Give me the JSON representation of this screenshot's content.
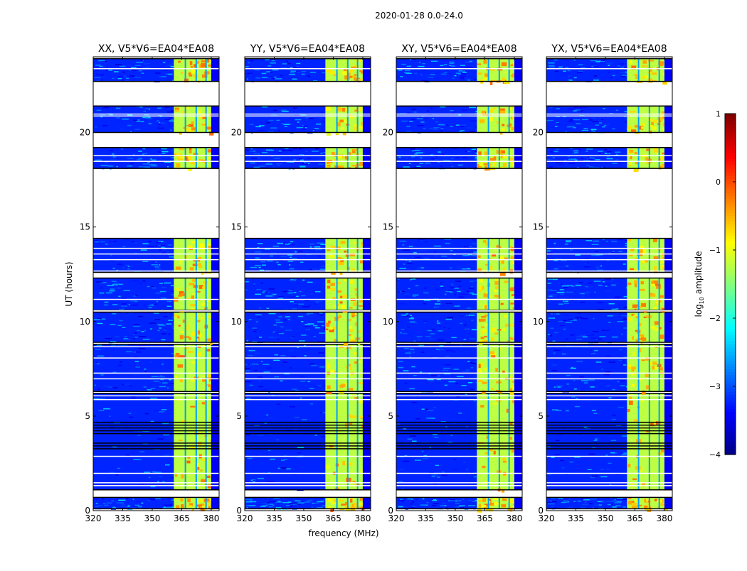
{
  "chart_data": {
    "type": "heatmap",
    "title": "2020-01-28 0.0-24.0",
    "xlabel": "frequency (MHz)",
    "ylabel": "UT (hours)",
    "xlim": [
      320,
      384
    ],
    "ylim": [
      0,
      24
    ],
    "xticks": [
      "320",
      "335",
      "350",
      "365",
      "380"
    ],
    "xtick_values": [
      320,
      335,
      350,
      365,
      380
    ],
    "yticks": [
      "0",
      "5",
      "10",
      "15",
      "20"
    ],
    "ytick_values": [
      0,
      5,
      10,
      15,
      20
    ],
    "panels": [
      {
        "title": "XX, V5*V6=EA04*EA08"
      },
      {
        "title": "YY, V5*V6=EA04*EA08"
      },
      {
        "title": "XY, V5*V6=EA04*EA08"
      },
      {
        "title": "YX, V5*V6=EA04*EA08"
      }
    ],
    "data_time_segments_hours": [
      [
        0.1,
        0.7
      ],
      [
        1.1,
        6.2
      ],
      [
        6.3,
        8.8
      ],
      [
        8.9,
        10.5
      ],
      [
        10.6,
        12.3
      ],
      [
        12.6,
        14.4
      ],
      [
        18.1,
        19.2
      ],
      [
        20.0,
        21.4
      ],
      [
        22.7,
        23.9
      ]
    ],
    "flagged_lines_hours": [
      0.95,
      1.35,
      1.5,
      2.0,
      2.9,
      3.3,
      3.45,
      3.6,
      4.1,
      4.25,
      4.4,
      4.55,
      4.7,
      5.9,
      6.1,
      7.0,
      7.3,
      8.1,
      8.7,
      10.6,
      11.2,
      12.7,
      13.3,
      13.6,
      13.9,
      18.5,
      18.8,
      20.9,
      21.0,
      23.4
    ],
    "background_log10_amplitude": -3.2,
    "bright_band_mhz": [
      361,
      380
    ],
    "bright_band_log10_amplitude": -1.2,
    "bright_band_stripes_mhz": [
      366.5,
      372,
      377
    ],
    "colorbar": {
      "label": "log10 amplitude",
      "label_main": "log",
      "label_sub": "10",
      "label_rest": " amplitude",
      "range": [
        -4,
        1
      ],
      "ticks": [
        "1",
        "0",
        "−1",
        "−2",
        "−3",
        "−4"
      ],
      "tick_values": [
        1,
        0,
        -1,
        -2,
        -3,
        -4
      ],
      "colormap": "jet"
    }
  }
}
